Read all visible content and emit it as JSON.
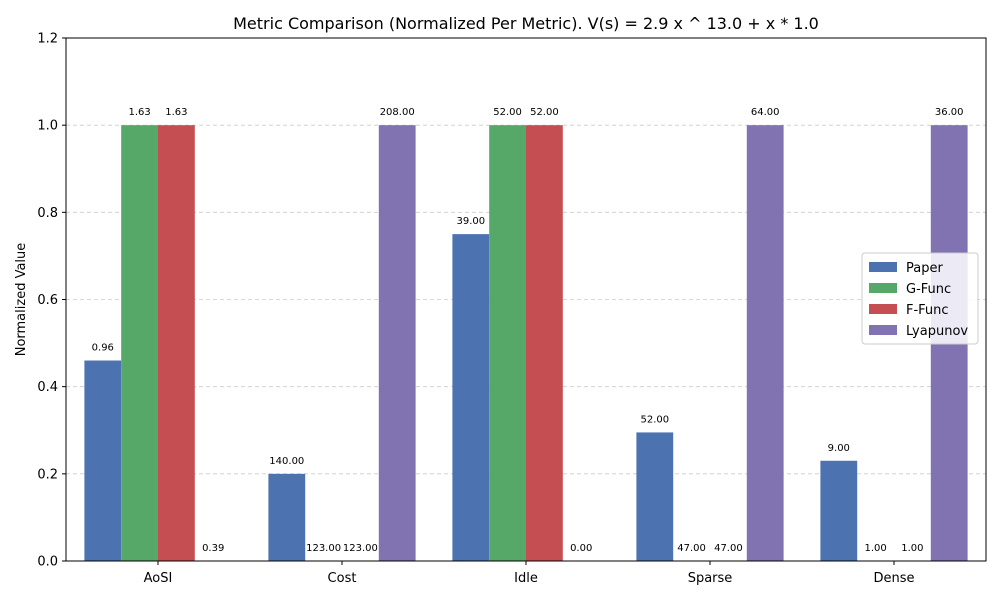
{
  "chart_data": {
    "type": "bar",
    "title": "Metric Comparison (Normalized Per Metric). V(s) = 2.9 x ^ 13.0 + x * 1.0",
    "xlabel": "",
    "ylabel": "Normalized Value",
    "ylim": [
      0,
      1.2
    ],
    "yticks": [
      0.0,
      0.2,
      0.4,
      0.6,
      0.8,
      1.0,
      1.2
    ],
    "ytick_labels": [
      "0.0",
      "0.2",
      "0.4",
      "0.6",
      "0.8",
      "1.0",
      "1.2"
    ],
    "grid": "y-dashed",
    "legend_position": "right",
    "categories": [
      "AoSI",
      "Cost",
      "Idle",
      "Sparse",
      "Dense"
    ],
    "series": [
      {
        "name": "Paper",
        "color": "#4c72b0",
        "values": [
          0.46,
          0.2,
          0.75,
          0.295,
          0.23
        ],
        "labels": [
          "0.96",
          "140.00",
          "39.00",
          "52.00",
          "9.00"
        ]
      },
      {
        "name": "G-Func",
        "color": "#55a868",
        "values": [
          1.0,
          0.0,
          1.0,
          0.0,
          0.0
        ],
        "labels": [
          "1.63",
          "123.00",
          "52.00",
          "47.00",
          "1.00"
        ]
      },
      {
        "name": "F-Func",
        "color": "#c44e52",
        "values": [
          1.0,
          0.0,
          1.0,
          0.0,
          0.0
        ],
        "labels": [
          "1.63",
          "123.00",
          "52.00",
          "47.00",
          "1.00"
        ]
      },
      {
        "name": "Lyapunov",
        "color": "#8172b2",
        "values": [
          0.0,
          1.0,
          0.0,
          1.0,
          1.0
        ],
        "labels": [
          "0.39",
          "208.00",
          "0.00",
          "64.00",
          "36.00"
        ]
      }
    ]
  }
}
